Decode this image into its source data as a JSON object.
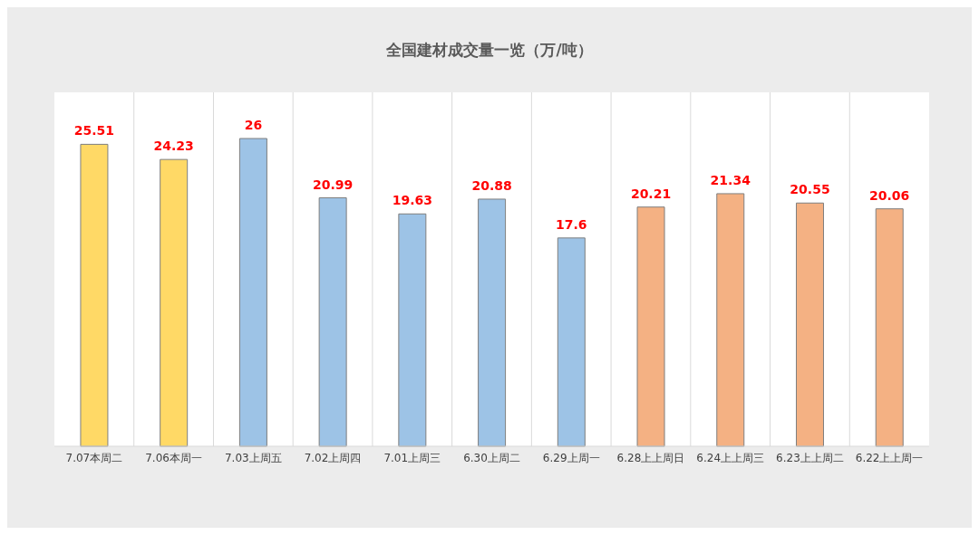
{
  "chart_data": {
    "type": "bar",
    "title": "全国建材成交量一览（万/吨）",
    "categories": [
      "7.07本周二",
      "7.06本周一",
      "7.03上周五",
      "7.02上周四",
      "7.01上周三",
      "6.30上周二",
      "6.29上周一",
      "6.28上上周日",
      "6.24上上周三",
      "6.23上上周二",
      "6.22上上周一"
    ],
    "values": [
      25.51,
      24.23,
      26,
      20.99,
      19.63,
      20.88,
      17.6,
      20.21,
      21.34,
      20.55,
      20.06
    ],
    "colors": [
      "#ffd966",
      "#ffd966",
      "#9dc3e6",
      "#9dc3e6",
      "#9dc3e6",
      "#9dc3e6",
      "#9dc3e6",
      "#f4b183",
      "#f4b183",
      "#f4b183",
      "#f4b183"
    ],
    "data_labels": true,
    "grid": "x"
  }
}
